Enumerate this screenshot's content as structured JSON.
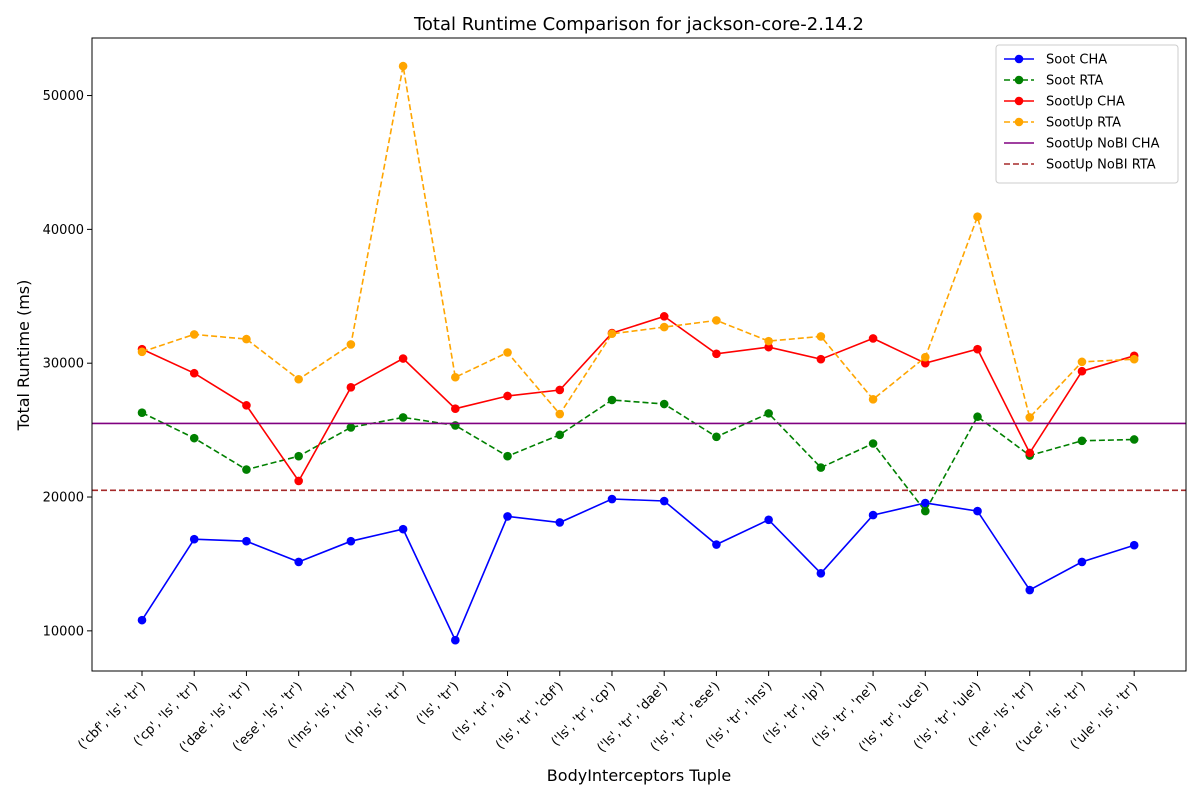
{
  "chart_data": {
    "type": "line",
    "title": "Total Runtime Comparison for jackson-core-2.14.2",
    "xlabel": "BodyInterceptors Tuple",
    "ylabel": "Total Runtime (ms)",
    "ylim": [
      7000,
      54300
    ],
    "yticks": [
      10000,
      20000,
      30000,
      40000,
      50000
    ],
    "ytick_labels": [
      "10000",
      "20000",
      "30000",
      "40000",
      "50000"
    ],
    "grid": false,
    "legend_position": "top-right",
    "categories": [
      "('cbf', 'ls', 'tr')",
      "('cp', 'ls', 'tr')",
      "('dae', 'ls', 'tr')",
      "('ese', 'ls', 'tr')",
      "('lns', 'ls', 'tr')",
      "('lp', 'ls', 'tr')",
      "('ls', 'tr')",
      "('ls', 'tr', 'a')",
      "('ls', 'tr', 'cbf')",
      "('ls', 'tr', 'cp')",
      "('ls', 'tr', 'dae')",
      "('ls', 'tr', 'ese')",
      "('ls', 'tr', 'lns')",
      "('ls', 'tr', 'lp')",
      "('ls', 'tr', 'ne')",
      "('ls', 'tr', 'uce')",
      "('ls', 'tr', 'ule')",
      "('ne', 'ls', 'tr')",
      "('uce', 'ls', 'tr')",
      "('ule', 'ls', 'tr')"
    ],
    "series": [
      {
        "name": "Soot CHA",
        "color": "#0000ff",
        "dash": "solid",
        "marker": "circle",
        "values": [
          10800,
          16850,
          16700,
          15150,
          16700,
          17600,
          9300,
          18550,
          18100,
          19850,
          19700,
          16450,
          18300,
          14300,
          18650,
          19550,
          18950,
          13050,
          15150,
          16400
        ]
      },
      {
        "name": "Soot RTA",
        "color": "#008000",
        "dash": "dashed",
        "marker": "circle",
        "values": [
          26300,
          24400,
          22050,
          23050,
          25200,
          25950,
          25350,
          23050,
          24650,
          27250,
          26950,
          24500,
          26250,
          22200,
          24000,
          18950,
          26000,
          23100,
          24200,
          24300
        ]
      },
      {
        "name": "SootUp CHA",
        "color": "#ff0000",
        "dash": "solid",
        "marker": "circle",
        "values": [
          31050,
          29250,
          26850,
          21200,
          28200,
          30350,
          26600,
          27550,
          28000,
          32250,
          33500,
          30700,
          31200,
          30300,
          31850,
          30000,
          31050,
          23300,
          29400,
          30550
        ]
      },
      {
        "name": "SootUp RTA",
        "color": "#ffa500",
        "dash": "dashed",
        "marker": "circle",
        "values": [
          30850,
          32150,
          31800,
          28800,
          31400,
          52200,
          28950,
          30800,
          26200,
          32200,
          32700,
          33200,
          31650,
          32000,
          27300,
          30450,
          40950,
          25950,
          30100,
          30300
        ]
      },
      {
        "name": "SootUp NoBI CHA",
        "color": "#800080",
        "dash": "solid",
        "marker": "none",
        "constant": 25500
      },
      {
        "name": "SootUp NoBI RTA",
        "color": "#a52a2a",
        "dash": "dashed",
        "marker": "none",
        "constant": 20500
      }
    ]
  }
}
